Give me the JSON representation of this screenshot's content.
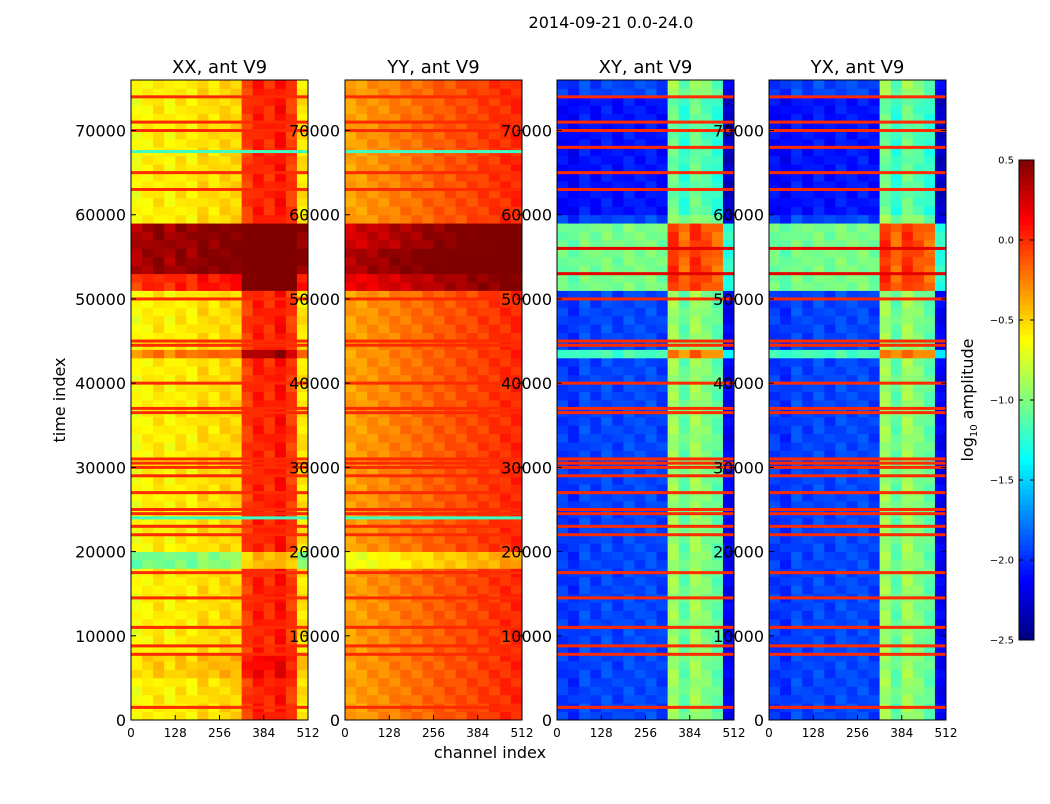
{
  "chart_data": {
    "type": "heatmap",
    "suptitle": "2014-09-21 0.0-24.0",
    "xlabel": "channel index",
    "ylabel": "time index",
    "xlim": [
      0,
      512
    ],
    "ylim": [
      0,
      76000
    ],
    "xticks": [
      0,
      128,
      256,
      384,
      512
    ],
    "yticks": [
      0,
      10000,
      20000,
      30000,
      40000,
      50000,
      60000,
      70000
    ],
    "colormap": "jet",
    "clim": [
      -2.5,
      0.5
    ],
    "colorbar": {
      "label_prefix": "log",
      "label_sub": "10",
      "label_suffix": " amplitude",
      "ticks": [
        -2.5,
        -2.0,
        -1.5,
        -1.0,
        -0.5,
        0.0,
        0.5
      ],
      "tick_labels": [
        "−2.5",
        "−2.0",
        "−1.5",
        "−1.0",
        "−0.5",
        "0.0",
        "0.5"
      ]
    },
    "channel_bin_width": 32,
    "time_bin_width": 1000,
    "panels": [
      {
        "title": "XX, ant V9",
        "channel_profile": [
          -0.65,
          -0.6,
          -0.55,
          -0.62,
          -0.55,
          -0.6,
          -0.5,
          -0.55,
          -0.5,
          -0.5,
          -0.05,
          0.05,
          0.0,
          0.1,
          -0.05,
          -0.55
        ],
        "time_bands": [
          [
            51000,
            53000,
            0.6
          ],
          [
            53500,
            55800,
            1.0
          ],
          [
            56500,
            59000,
            1.0
          ],
          [
            18500,
            20000,
            -0.45
          ],
          [
            42800,
            44000,
            0.35
          ],
          [
            5500,
            8000,
            0.1
          ]
        ],
        "stripes": [
          [
            1500,
            0.0
          ],
          [
            7800,
            0.0
          ],
          [
            8800,
            0.0
          ],
          [
            11000,
            0.0
          ],
          [
            14500,
            0.0
          ],
          [
            17500,
            0.0
          ],
          [
            22000,
            0.0
          ],
          [
            23000,
            0.0
          ],
          [
            24000,
            -1.2
          ],
          [
            24500,
            0.0
          ],
          [
            25000,
            0.0
          ],
          [
            27000,
            0.0
          ],
          [
            29000,
            0.0
          ],
          [
            30000,
            0.0
          ],
          [
            30500,
            0.0
          ],
          [
            31000,
            0.0
          ],
          [
            36500,
            0.0
          ],
          [
            37000,
            0.0
          ],
          [
            40000,
            0.0
          ],
          [
            44500,
            0.0
          ],
          [
            45000,
            0.0
          ],
          [
            50000,
            0.0
          ],
          [
            63000,
            0.0
          ],
          [
            65000,
            0.0
          ],
          [
            67500,
            -1.2
          ],
          [
            70000,
            0.0
          ],
          [
            71000,
            0.0
          ],
          [
            74000,
            0.0
          ]
        ]
      },
      {
        "title": "YY, ant V9",
        "channel_profile": [
          -0.35,
          -0.33,
          -0.3,
          -0.28,
          -0.25,
          -0.22,
          -0.2,
          -0.17,
          -0.14,
          -0.12,
          -0.1,
          -0.08,
          -0.05,
          -0.03,
          0.0,
          0.02
        ],
        "time_bands": [
          [
            51000,
            53000,
            0.5
          ],
          [
            53500,
            55800,
            0.7
          ],
          [
            56500,
            59000,
            0.6
          ],
          [
            18500,
            20000,
            -0.35
          ]
        ],
        "stripes": [
          [
            1500,
            0.0
          ],
          [
            7800,
            0.0
          ],
          [
            8800,
            0.0
          ],
          [
            11000,
            0.0
          ],
          [
            14500,
            0.0
          ],
          [
            17500,
            0.0
          ],
          [
            22000,
            0.0
          ],
          [
            23000,
            0.0
          ],
          [
            24000,
            -1.2
          ],
          [
            24500,
            0.0
          ],
          [
            25000,
            0.0
          ],
          [
            27000,
            0.0
          ],
          [
            29000,
            0.0
          ],
          [
            30000,
            0.0
          ],
          [
            30500,
            0.0
          ],
          [
            31000,
            0.0
          ],
          [
            36500,
            0.0
          ],
          [
            37000,
            0.0
          ],
          [
            40000,
            0.0
          ],
          [
            44500,
            0.0
          ],
          [
            45000,
            0.0
          ],
          [
            50000,
            0.0
          ],
          [
            63000,
            0.0
          ],
          [
            65000,
            0.0
          ],
          [
            67500,
            -1.2
          ],
          [
            70000,
            0.0
          ],
          [
            71000,
            0.0
          ],
          [
            74000,
            0.0
          ]
        ]
      },
      {
        "title": "XY, ant V9",
        "channel_profile": [
          -1.95,
          -2.0,
          -1.9,
          -1.95,
          -1.9,
          -1.95,
          -1.9,
          -1.92,
          -1.9,
          -1.95,
          -0.9,
          -1.1,
          -0.9,
          -1.0,
          -1.1,
          -2.15
        ],
        "time_bands": [
          [
            51000,
            53000,
            0.9
          ],
          [
            53500,
            55800,
            0.9
          ],
          [
            56500,
            59000,
            0.9
          ],
          [
            42800,
            44000,
            0.75
          ],
          [
            60000,
            74000,
            -0.15
          ]
        ],
        "stripes": [
          [
            1500,
            0.0
          ],
          [
            7800,
            0.0
          ],
          [
            8800,
            0.0
          ],
          [
            11000,
            0.0
          ],
          [
            14500,
            0.0
          ],
          [
            17500,
            0.0
          ],
          [
            22000,
            0.0
          ],
          [
            23000,
            0.0
          ],
          [
            24500,
            0.0
          ],
          [
            25000,
            0.0
          ],
          [
            27000,
            0.0
          ],
          [
            29000,
            0.0
          ],
          [
            30000,
            0.0
          ],
          [
            30500,
            0.0
          ],
          [
            31000,
            0.0
          ],
          [
            36500,
            0.0
          ],
          [
            37000,
            0.0
          ],
          [
            40000,
            0.0
          ],
          [
            44500,
            0.0
          ],
          [
            45000,
            0.0
          ],
          [
            50000,
            0.0
          ],
          [
            53000,
            0.2
          ],
          [
            56000,
            0.2
          ],
          [
            63000,
            0.0
          ],
          [
            65000,
            0.0
          ],
          [
            68000,
            0.0
          ],
          [
            70000,
            0.0
          ],
          [
            71000,
            0.0
          ],
          [
            74000,
            0.0
          ]
        ]
      },
      {
        "title": "YX, ant V9",
        "channel_profile": [
          -1.95,
          -2.0,
          -1.9,
          -1.95,
          -1.9,
          -1.95,
          -1.9,
          -1.92,
          -1.9,
          -1.95,
          -0.9,
          -1.1,
          -0.9,
          -1.0,
          -1.1,
          -2.15
        ],
        "time_bands": [
          [
            51000,
            53000,
            0.9
          ],
          [
            53500,
            55800,
            0.9
          ],
          [
            56500,
            59000,
            0.9
          ],
          [
            42800,
            44000,
            0.75
          ],
          [
            60000,
            74000,
            -0.15
          ]
        ],
        "stripes": [
          [
            1500,
            0.0
          ],
          [
            7800,
            0.0
          ],
          [
            8800,
            0.0
          ],
          [
            11000,
            0.0
          ],
          [
            14500,
            0.0
          ],
          [
            17500,
            0.0
          ],
          [
            22000,
            0.0
          ],
          [
            23000,
            0.0
          ],
          [
            24500,
            0.0
          ],
          [
            25000,
            0.0
          ],
          [
            27000,
            0.0
          ],
          [
            29000,
            0.0
          ],
          [
            30000,
            0.0
          ],
          [
            30500,
            0.0
          ],
          [
            31000,
            0.0
          ],
          [
            36500,
            0.0
          ],
          [
            37000,
            0.0
          ],
          [
            40000,
            0.0
          ],
          [
            44500,
            0.0
          ],
          [
            45000,
            0.0
          ],
          [
            50000,
            0.0
          ],
          [
            53000,
            0.2
          ],
          [
            56000,
            0.2
          ],
          [
            63000,
            0.0
          ],
          [
            65000,
            0.0
          ],
          [
            68000,
            0.0
          ],
          [
            70000,
            0.0
          ],
          [
            71000,
            0.0
          ],
          [
            74000,
            0.0
          ]
        ]
      }
    ]
  }
}
